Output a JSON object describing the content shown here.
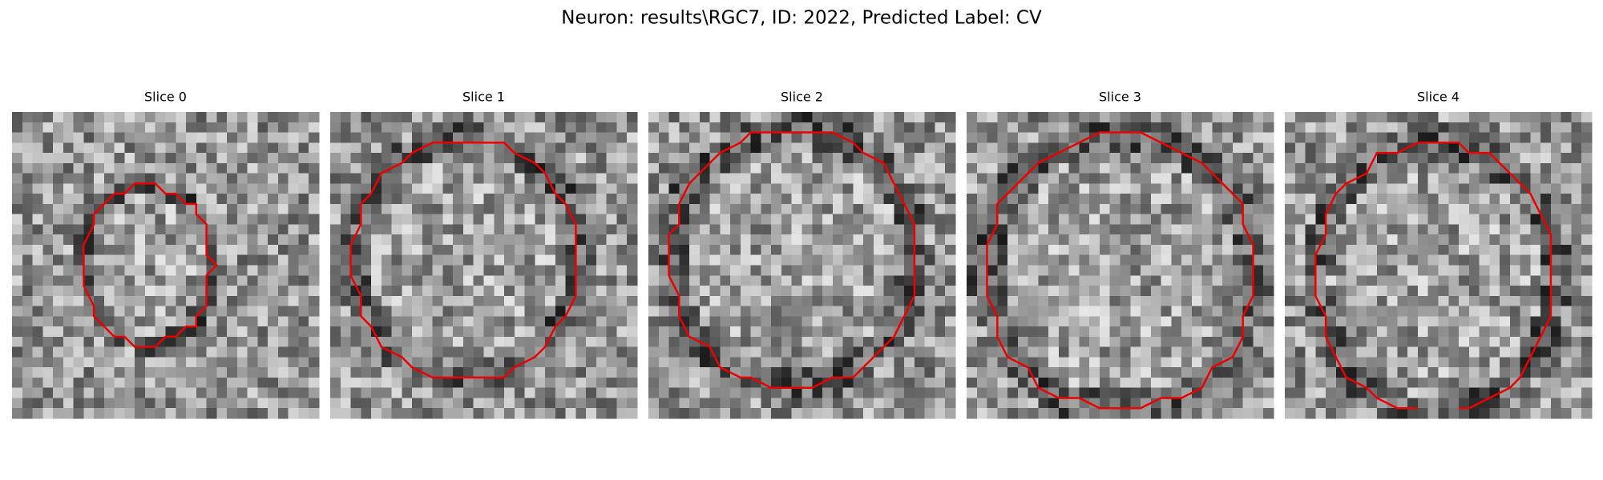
{
  "title": "Neuron: results\\RGC7, ID: 2022, Predicted Label: CV",
  "panels": [
    {
      "label": "Slice 0"
    },
    {
      "label": "Slice 1"
    },
    {
      "label": "Slice 2"
    },
    {
      "label": "Slice 3"
    },
    {
      "label": "Slice 4"
    }
  ]
}
